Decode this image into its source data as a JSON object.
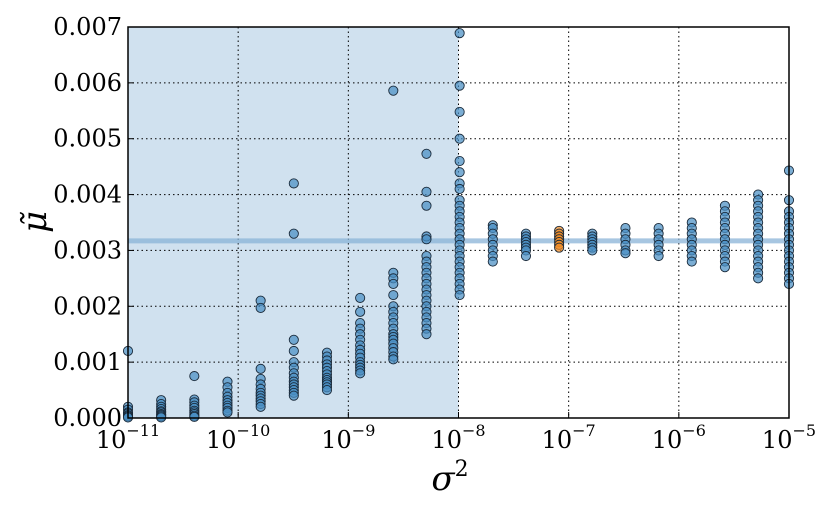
{
  "chart_data": {
    "type": "scatter",
    "title": "",
    "xlabel": "σ",
    "xlabel_sup": "2",
    "ylabel": "μ̃",
    "x_scale": "log",
    "x_range": [
      1e-11,
      1e-05
    ],
    "ylim": [
      0.0,
      0.007
    ],
    "grid": true,
    "grid_style": "dotted",
    "x_tick_labels": [
      {
        "value": 1e-11,
        "base": "10",
        "exp": "−11"
      },
      {
        "value": 1e-10,
        "base": "10",
        "exp": "−10"
      },
      {
        "value": 1e-09,
        "base": "10",
        "exp": "−9"
      },
      {
        "value": 1e-08,
        "base": "10",
        "exp": "−8"
      },
      {
        "value": 1e-07,
        "base": "10",
        "exp": "−7"
      },
      {
        "value": 1e-06,
        "base": "10",
        "exp": "−6"
      },
      {
        "value": 1e-05,
        "base": "10",
        "exp": "−5"
      }
    ],
    "y_tick_labels": [
      {
        "value": 0.0,
        "label": "0.000"
      },
      {
        "value": 0.001,
        "label": "0.001"
      },
      {
        "value": 0.002,
        "label": "0.002"
      },
      {
        "value": 0.003,
        "label": "0.003"
      },
      {
        "value": 0.004,
        "label": "0.004"
      },
      {
        "value": 0.005,
        "label": "0.005"
      },
      {
        "value": 0.006,
        "label": "0.006"
      },
      {
        "value": 0.007,
        "label": "0.007"
      }
    ],
    "shaded_region": {
      "x_from": 1e-11,
      "x_to": 1e-08,
      "color": "#b7d1e6"
    },
    "reference_line": {
      "y": 0.00317,
      "color": "#8ab4d8"
    },
    "colors": {
      "blue_points": "#4a8fc4",
      "orange_points": "#f08a24",
      "edge": "#1a2a3a"
    },
    "series": [
      {
        "color_key": "blue_points",
        "points": [
          {
            "x": 1e-11,
            "ys": [
              0.0012,
              0.0002,
              0.00015,
              0.0001,
              8e-05,
              5e-05,
              3e-05,
              1e-05
            ]
          },
          {
            "x": 2e-11,
            "ys": [
              0.00032,
              0.00025,
              0.0002,
              0.00016,
              0.00012,
              0.0001,
              7e-05,
              5e-05,
              3e-05,
              1e-05
            ]
          },
          {
            "x": 4e-11,
            "ys": [
              0.00075,
              0.00033,
              0.00028,
              0.00022,
              0.00018,
              0.00013,
              0.0001,
              7e-05,
              4e-05,
              2e-05
            ]
          },
          {
            "x": 8e-11,
            "ys": [
              0.00065,
              0.00055,
              0.00045,
              0.00038,
              0.00032,
              0.00027,
              0.00022,
              0.00018,
              0.00013,
              0.0001
            ]
          },
          {
            "x": 1.6e-10,
            "ys": [
              0.0021,
              0.00197,
              0.00088,
              0.0007,
              0.0006,
              0.00052,
              0.00045,
              0.0004,
              0.00035,
              0.0003,
              0.00025,
              0.0002
            ]
          },
          {
            "x": 3.2e-10,
            "ys": [
              0.0042,
              0.0033,
              0.0014,
              0.0012,
              0.001,
              0.0009,
              0.0008,
              0.00072,
              0.00065,
              0.0006,
              0.00055,
              0.0005,
              0.00045,
              0.0004
            ]
          },
          {
            "x": 6.4e-10,
            "ys": [
              0.00117,
              0.0011,
              0.00103,
              0.00096,
              0.0009,
              0.00084,
              0.00078,
              0.00072,
              0.00068,
              0.00064,
              0.0006,
              0.00055,
              0.0005
            ]
          },
          {
            "x": 1.28e-09,
            "ys": [
              0.00215,
              0.0019,
              0.0017,
              0.0016,
              0.0015,
              0.0014,
              0.0013,
              0.00122,
              0.00115,
              0.00108,
              0.001,
              0.00095,
              0.0009,
              0.00085,
              0.0008
            ]
          },
          {
            "x": 2.56e-09,
            "ys": [
              0.00586,
              0.0026,
              0.0025,
              0.0024,
              0.0022,
              0.002,
              0.0019,
              0.0018,
              0.0017,
              0.0016,
              0.0015,
              0.00145,
              0.0014,
              0.00133,
              0.00125,
              0.00118,
              0.0011,
              0.00105
            ]
          },
          {
            "x": 5.12e-09,
            "ys": [
              0.00473,
              0.00405,
              0.0038,
              0.00325,
              0.0032,
              0.0029,
              0.0028,
              0.0027,
              0.0026,
              0.0025,
              0.0024,
              0.0023,
              0.0022,
              0.0021,
              0.002,
              0.0019,
              0.0018,
              0.0017,
              0.0016,
              0.0015
            ]
          },
          {
            "x": 1.024e-08,
            "ys": [
              0.00689,
              0.00595,
              0.00548,
              0.005,
              0.0046,
              0.0044,
              0.0042,
              0.0041,
              0.0039,
              0.0038,
              0.0037,
              0.0036,
              0.0035,
              0.0034,
              0.0033,
              0.0032,
              0.0031,
              0.003,
              0.0029,
              0.0028,
              0.0027,
              0.0026,
              0.0025,
              0.0024,
              0.0023,
              0.0022
            ]
          },
          {
            "x": 2.048e-08,
            "ys": [
              0.00345,
              0.0034,
              0.0033,
              0.0032,
              0.0031,
              0.003,
              0.0029,
              0.0028
            ]
          },
          {
            "x": 4.096e-08,
            "ys": [
              0.0033,
              0.00325,
              0.0032,
              0.00315,
              0.0031,
              0.00305,
              0.003,
              0.0029
            ]
          },
          {
            "x": 1.6384e-07,
            "ys": [
              0.0033,
              0.00325,
              0.0032,
              0.00315,
              0.0031,
              0.00305,
              0.003
            ]
          },
          {
            "x": 3.2768e-07,
            "ys": [
              0.0034,
              0.0033,
              0.0032,
              0.0031,
              0.003,
              0.00295
            ]
          },
          {
            "x": 6.5536e-07,
            "ys": [
              0.0034,
              0.0033,
              0.0032,
              0.0031,
              0.003,
              0.0029
            ]
          },
          {
            "x": 1.31072e-06,
            "ys": [
              0.0035,
              0.0034,
              0.0033,
              0.0032,
              0.0031,
              0.003,
              0.0029,
              0.0028
            ]
          },
          {
            "x": 2.62144e-06,
            "ys": [
              0.0038,
              0.0037,
              0.0036,
              0.0035,
              0.0034,
              0.0033,
              0.0032,
              0.0031,
              0.003,
              0.0029,
              0.0028,
              0.0027
            ]
          },
          {
            "x": 5.24288e-06,
            "ys": [
              0.004,
              0.0039,
              0.0038,
              0.0037,
              0.0036,
              0.0035,
              0.0034,
              0.0033,
              0.0032,
              0.0031,
              0.003,
              0.0029,
              0.0028,
              0.0027,
              0.0026,
              0.0025
            ]
          },
          {
            "x": 1e-05,
            "ys": [
              0.00443,
              0.0039,
              0.0037,
              0.0036,
              0.0035,
              0.0034,
              0.0033,
              0.0032,
              0.0031,
              0.003,
              0.0029,
              0.0028,
              0.0027,
              0.0026,
              0.0025,
              0.0024
            ]
          }
        ]
      },
      {
        "color_key": "orange_points",
        "points": [
          {
            "x": 8.192e-08,
            "ys": [
              0.00335,
              0.0033,
              0.00325,
              0.0032,
              0.00315,
              0.0031,
              0.00305
            ]
          }
        ]
      }
    ]
  }
}
